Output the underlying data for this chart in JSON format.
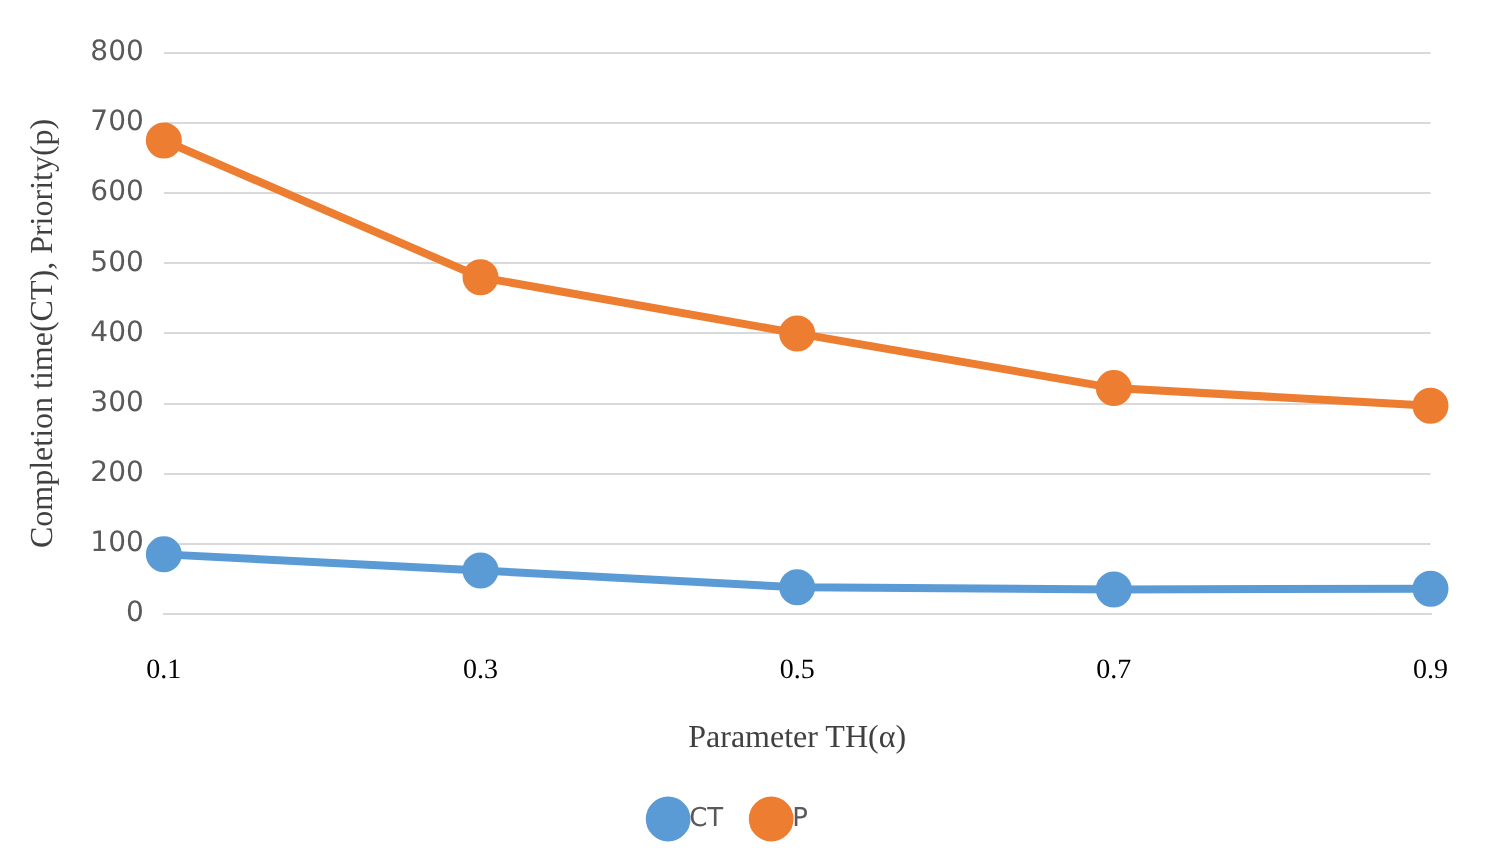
{
  "chart_data": {
    "type": "line",
    "xlabel": "Parameter TH(α)",
    "ylabel": "Completion time(CT), Priority(p)",
    "categories": [
      "0.1",
      "0.3",
      "0.5",
      "0.7",
      "0.9"
    ],
    "series": [
      {
        "name": "CT",
        "color": "#5b9bd5",
        "values": [
          85,
          62,
          38,
          35,
          36
        ]
      },
      {
        "name": "P",
        "color": "#ed7d31",
        "values": [
          675,
          480,
          400,
          322,
          297
        ]
      }
    ],
    "ylim": [
      0,
      800
    ],
    "yticks": [
      0,
      100,
      200,
      300,
      400,
      500,
      600,
      700,
      800
    ],
    "grid": "y",
    "legend": "bottom",
    "marker": "circle",
    "line_style": "solid"
  }
}
